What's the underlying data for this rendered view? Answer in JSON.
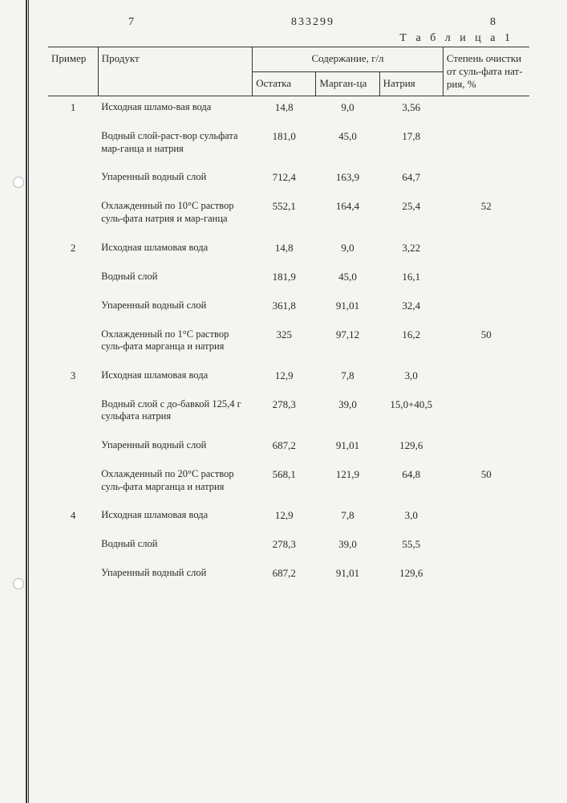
{
  "header": {
    "left_num": "7",
    "doc_num": "833299",
    "right_num": "8",
    "caption": "Т а б л и ц а 1"
  },
  "columns": {
    "primer": "Пример",
    "product": "Продукт",
    "content_group": "Содержание, г/л",
    "ostatka": "Остатка",
    "margantsa": "Марган-ца",
    "natriya": "Натрия",
    "purification": "Степень очистки от суль-фата нат-рия, %"
  },
  "rows": [
    {
      "primer": "1",
      "product": "Исходная шламо-вая вода",
      "ost": "14,8",
      "mn": "9,0",
      "na": "3,56",
      "pur": ""
    },
    {
      "primer": "",
      "product": "Водный слой-раст-вор сульфата мар-ганца и натрия",
      "ost": "181,0",
      "mn": "45,0",
      "na": "17,8",
      "pur": ""
    },
    {
      "primer": "",
      "product": "Упаренный водный слой",
      "ost": "712,4",
      "mn": "163,9",
      "na": "64,7",
      "pur": ""
    },
    {
      "primer": "",
      "product": "Охлажденный по 10°С раствор суль-фата натрия и мар-ганца",
      "ost": "552,1",
      "mn": "164,4",
      "na": "25,4",
      "pur": "52"
    },
    {
      "primer": "2",
      "product": "Исходная шламовая вода",
      "ost": "14,8",
      "mn": "9,0",
      "na": "3,22",
      "pur": ""
    },
    {
      "primer": "",
      "product": "Водный слой",
      "ost": "181,9",
      "mn": "45,0",
      "na": "16,1",
      "pur": ""
    },
    {
      "primer": "",
      "product": "Упаренный водный слой",
      "ost": "361,8",
      "mn": "91,01",
      "na": "32,4",
      "pur": ""
    },
    {
      "primer": "",
      "product": "Охлажденный по 1°С раствор суль-фата марганца и натрия",
      "ost": "325",
      "mn": "97,12",
      "na": "16,2",
      "pur": "50"
    },
    {
      "primer": "3",
      "product": "Исходная шламовая вода",
      "ost": "12,9",
      "mn": "7,8",
      "na": "3,0",
      "pur": ""
    },
    {
      "primer": "",
      "product": "Водный слой с до-бавкой 125,4 г сульфата натрия",
      "ost": "278,3",
      "mn": "39,0",
      "na": "15,0+40,5",
      "pur": ""
    },
    {
      "primer": "",
      "product": "Упаренный водный слой",
      "ost": "687,2",
      "mn": "91,01",
      "na": "129,6",
      "pur": ""
    },
    {
      "primer": "",
      "product": "Охлажденный по 20°С раствор суль-фата марганца и натрия",
      "ost": "568,1",
      "mn": "121,9",
      "na": "64,8",
      "pur": "50"
    },
    {
      "primer": "4",
      "product": "Исходная шламовая вода",
      "ost": "12,9",
      "mn": "7,8",
      "na": "3,0",
      "pur": ""
    },
    {
      "primer": "",
      "product": "Водный слой",
      "ost": "278,3",
      "mn": "39,0",
      "na": "55,5",
      "pur": ""
    },
    {
      "primer": "",
      "product": "Упаренный водный слой",
      "ost": "687,2",
      "mn": "91,01",
      "na": "129,6",
      "pur": ""
    }
  ]
}
